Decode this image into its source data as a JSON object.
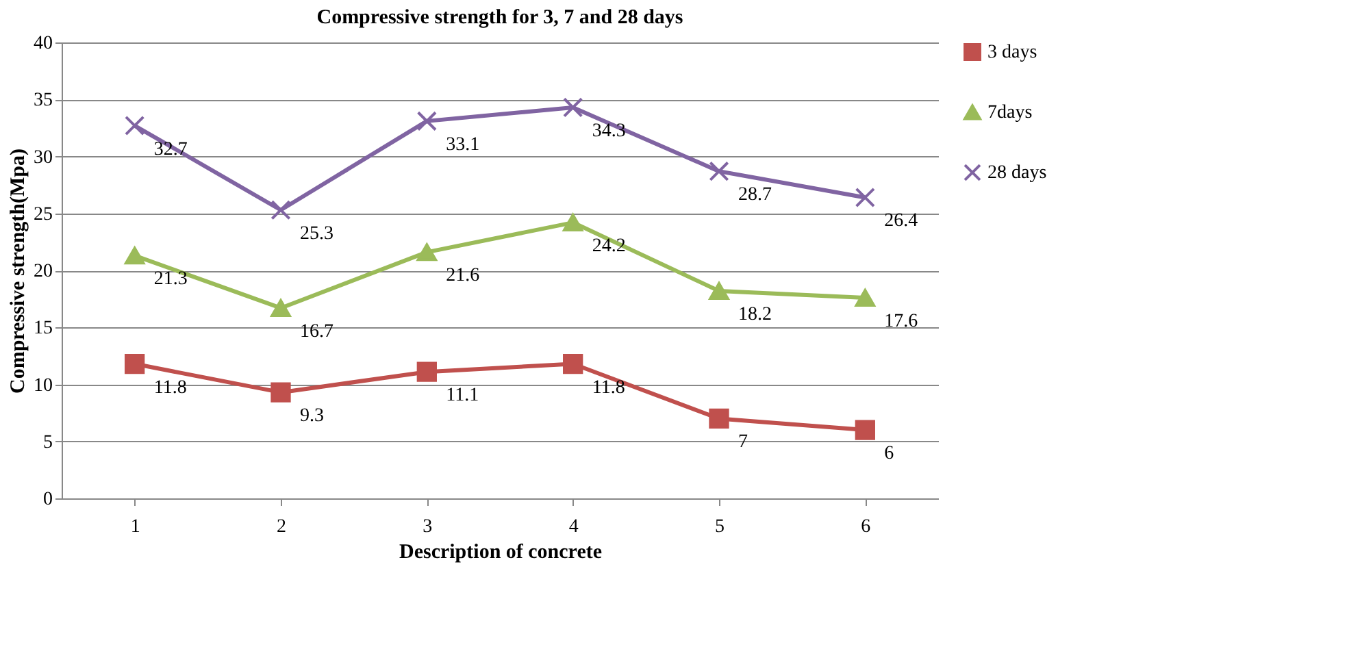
{
  "chart_data": {
    "type": "line",
    "title": "Compressive strength for 3, 7 and 28 days",
    "xlabel": "Description of concrete",
    "ylabel": "Compressive strength(Mpa)",
    "categories": [
      "1",
      "2",
      "3",
      "4",
      "5",
      "6"
    ],
    "series": [
      {
        "name": "3 days",
        "color": "#c0504d",
        "marker": "square",
        "values": [
          11.8,
          9.3,
          11.1,
          11.8,
          7,
          6
        ]
      },
      {
        "name": "7days",
        "color": "#9bbb59",
        "marker": "triangle",
        "values": [
          21.3,
          16.7,
          21.6,
          24.2,
          18.2,
          17.6
        ]
      },
      {
        "name": "28 days",
        "color": "#8064a2",
        "marker": "cross",
        "values": [
          32.7,
          25.3,
          33.1,
          34.3,
          28.7,
          26.4
        ]
      }
    ],
    "ylim": [
      0,
      40
    ],
    "yticks": [
      0,
      5,
      10,
      15,
      20,
      25,
      30,
      35,
      40
    ],
    "grid": "y",
    "legend": "right",
    "data_labels": true,
    "line_style": "solid"
  }
}
